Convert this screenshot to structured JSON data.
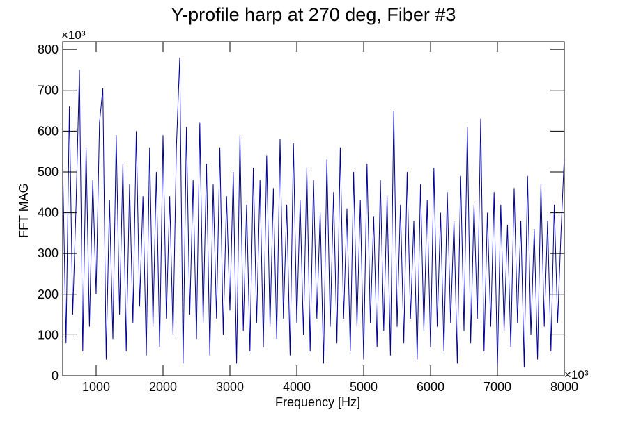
{
  "chart_data": {
    "type": "line",
    "title": "Y-profile harp at 270 deg, Fiber #3",
    "x_label": "Frequency [Hz]",
    "y_label": "FFT MAG",
    "x_exponent_label": "×10³",
    "y_exponent_label": "×10³",
    "color": "#000099",
    "xlim": [
      500,
      8000
    ],
    "xticks": [
      1000,
      2000,
      3000,
      4000,
      5000,
      6000,
      7000,
      8000
    ],
    "ylim": [
      0,
      819
    ],
    "yticks": [
      0,
      100,
      200,
      300,
      400,
      500,
      600,
      700,
      800
    ],
    "x": [
      500,
      550,
      600,
      650,
      700,
      750,
      800,
      850,
      900,
      950,
      1000,
      1050,
      1100,
      1150,
      1200,
      1250,
      1300,
      1350,
      1400,
      1450,
      1500,
      1550,
      1600,
      1650,
      1700,
      1750,
      1800,
      1850,
      1900,
      1950,
      2000,
      2050,
      2100,
      2150,
      2200,
      2250,
      2300,
      2350,
      2400,
      2450,
      2500,
      2550,
      2600,
      2650,
      2700,
      2750,
      2800,
      2850,
      2900,
      2950,
      3000,
      3050,
      3100,
      3150,
      3200,
      3250,
      3300,
      3350,
      3400,
      3450,
      3500,
      3550,
      3600,
      3650,
      3700,
      3750,
      3800,
      3850,
      3900,
      3950,
      4000,
      4050,
      4100,
      4150,
      4200,
      4250,
      4300,
      4350,
      4400,
      4450,
      4500,
      4550,
      4600,
      4650,
      4700,
      4750,
      4800,
      4850,
      4900,
      4950,
      5000,
      5050,
      5100,
      5150,
      5200,
      5250,
      5300,
      5350,
      5400,
      5450,
      5500,
      5550,
      5600,
      5650,
      5700,
      5750,
      5800,
      5850,
      5900,
      5950,
      6000,
      6050,
      6100,
      6150,
      6200,
      6250,
      6300,
      6350,
      6400,
      6450,
      6500,
      6550,
      6600,
      6650,
      6700,
      6750,
      6800,
      6850,
      6900,
      6950,
      7000,
      7050,
      7100,
      7150,
      7200,
      7250,
      7300,
      7350,
      7400,
      7450,
      7500,
      7550,
      7600,
      7650,
      7700,
      7750,
      7800,
      7850,
      7900,
      7950,
      8000
    ],
    "values": [
      520,
      80,
      660,
      150,
      420,
      750,
      60,
      560,
      120,
      480,
      200,
      620,
      705,
      40,
      430,
      90,
      590,
      150,
      520,
      60,
      470,
      130,
      600,
      170,
      440,
      50,
      560,
      120,
      500,
      70,
      590,
      140,
      440,
      100,
      560,
      780,
      30,
      610,
      150,
      480,
      90,
      620,
      130,
      520,
      50,
      470,
      140,
      560,
      100,
      440,
      160,
      500,
      30,
      590,
      110,
      420,
      60,
      510,
      130,
      480,
      70,
      540,
      120,
      460,
      90,
      580,
      140,
      420,
      50,
      570,
      130,
      430,
      100,
      510,
      60,
      480,
      140,
      400,
      30,
      530,
      120,
      450,
      80,
      560,
      140,
      410,
      60,
      500,
      120,
      430,
      40,
      520,
      130,
      390,
      70,
      480,
      110,
      440,
      50,
      650,
      120,
      420,
      80,
      500,
      140,
      380,
      40,
      470,
      110,
      430,
      70,
      510,
      120,
      400,
      60,
      450,
      130,
      380,
      30,
      490,
      110,
      610,
      80,
      420,
      140,
      630,
      60,
      400,
      120,
      450,
      20,
      420,
      110,
      370,
      70,
      460,
      130,
      380,
      20,
      490,
      100,
      360,
      40,
      470,
      120,
      380,
      60,
      420,
      130,
      350,
      540
    ]
  }
}
